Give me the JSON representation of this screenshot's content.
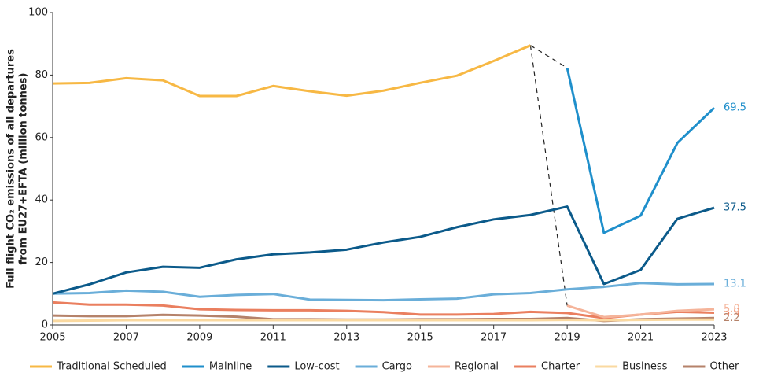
{
  "chart_data": {
    "type": "line",
    "y_label": [
      "Full flight CO₂ emissions of all departures",
      "from EU27+EFTA (million tonnes)"
    ],
    "x": [
      2005,
      2006,
      2007,
      2008,
      2009,
      2010,
      2011,
      2012,
      2013,
      2014,
      2015,
      2016,
      2017,
      2018,
      2019,
      2020,
      2021,
      2022,
      2023
    ],
    "xlim": [
      2005,
      2023
    ],
    "xticks": [
      2005,
      2007,
      2009,
      2011,
      2013,
      2015,
      2017,
      2019,
      2021,
      2023
    ],
    "ylim": [
      0,
      100
    ],
    "yticks": [
      0,
      20,
      40,
      60,
      80,
      100
    ],
    "legend": "bottom",
    "series": [
      {
        "name": "Traditional Scheduled",
        "color": "#f7b844",
        "values": [
          77.3,
          77.5,
          79,
          78.3,
          73.3,
          73.3,
          76.5,
          74.8,
          73.4,
          75,
          77.5,
          79.8,
          84.5,
          89.5,
          null,
          null,
          null,
          null,
          null
        ]
      },
      {
        "name": "Mainline",
        "color": "#1f8fcb",
        "values": [
          null,
          null,
          null,
          null,
          null,
          null,
          null,
          null,
          null,
          null,
          null,
          null,
          null,
          null,
          82.3,
          29.5,
          35,
          58.3,
          69.5
        ],
        "value_labels": [
          null,
          null,
          null,
          null,
          null,
          null,
          null,
          null,
          null,
          null,
          null,
          null,
          null,
          null,
          null,
          null,
          null,
          null,
          "69.5"
        ]
      },
      {
        "name": "Low-cost",
        "color": "#0b5a8a",
        "values": [
          10,
          13,
          16.8,
          18.6,
          18.3,
          21,
          22.6,
          23.2,
          24.1,
          26.4,
          28.2,
          31.3,
          33.8,
          35.2,
          37.9,
          13.1,
          17.6,
          34,
          37.5
        ],
        "value_labels": [
          null,
          null,
          null,
          null,
          null,
          null,
          null,
          null,
          null,
          null,
          null,
          null,
          null,
          null,
          null,
          null,
          null,
          null,
          "37.5"
        ]
      },
      {
        "name": "Cargo",
        "color": "#6aaed9",
        "values": [
          10,
          10.2,
          11,
          10.6,
          9,
          9.6,
          9.9,
          8.1,
          8,
          7.9,
          8.2,
          8.4,
          9.8,
          10.2,
          11.4,
          12.2,
          13.4,
          13,
          13.1
        ],
        "value_labels": [
          null,
          null,
          null,
          null,
          null,
          null,
          null,
          null,
          null,
          null,
          null,
          null,
          null,
          null,
          null,
          null,
          null,
          null,
          "13.1"
        ]
      },
      {
        "name": "Regional",
        "color": "#f5b49a",
        "values": [
          null,
          null,
          null,
          null,
          null,
          null,
          null,
          null,
          null,
          null,
          null,
          null,
          null,
          null,
          6.2,
          2.5,
          3.3,
          4.5,
          5.0
        ],
        "value_labels": [
          null,
          null,
          null,
          null,
          null,
          null,
          null,
          null,
          null,
          null,
          null,
          null,
          null,
          null,
          null,
          null,
          null,
          null,
          "5.0"
        ]
      },
      {
        "name": "Charter",
        "color": "#ea7f5f",
        "values": [
          7.2,
          6.5,
          6.5,
          6.2,
          5,
          4.8,
          4.7,
          4.7,
          4.5,
          4.1,
          3.3,
          3.3,
          3.5,
          4.2,
          3.8,
          2.2,
          3.3,
          4.2,
          3.9
        ],
        "value_labels": [
          null,
          null,
          null,
          null,
          null,
          null,
          null,
          null,
          null,
          null,
          null,
          null,
          null,
          null,
          null,
          null,
          null,
          null,
          "3.9"
        ]
      },
      {
        "name": "Business",
        "color": "#fad9a0",
        "values": [
          1.3,
          1.4,
          1.5,
          1.5,
          1.5,
          1.5,
          1.5,
          1.5,
          1.5,
          1.5,
          1.5,
          1.5,
          1.5,
          1.5,
          1.6,
          1.5,
          1.6,
          1.7,
          1.7
        ]
      },
      {
        "name": "Other",
        "color": "#b5826a",
        "values": [
          3,
          2.8,
          2.8,
          3.2,
          3,
          2.6,
          1.8,
          1.8,
          1.7,
          1.7,
          1.8,
          1.8,
          1.9,
          1.9,
          2.2,
          1.3,
          1.8,
          2.0,
          2.2
        ],
        "value_labels": [
          null,
          null,
          null,
          null,
          null,
          null,
          null,
          null,
          null,
          null,
          null,
          null,
          null,
          null,
          null,
          null,
          null,
          null,
          "2.2"
        ]
      }
    ]
  }
}
